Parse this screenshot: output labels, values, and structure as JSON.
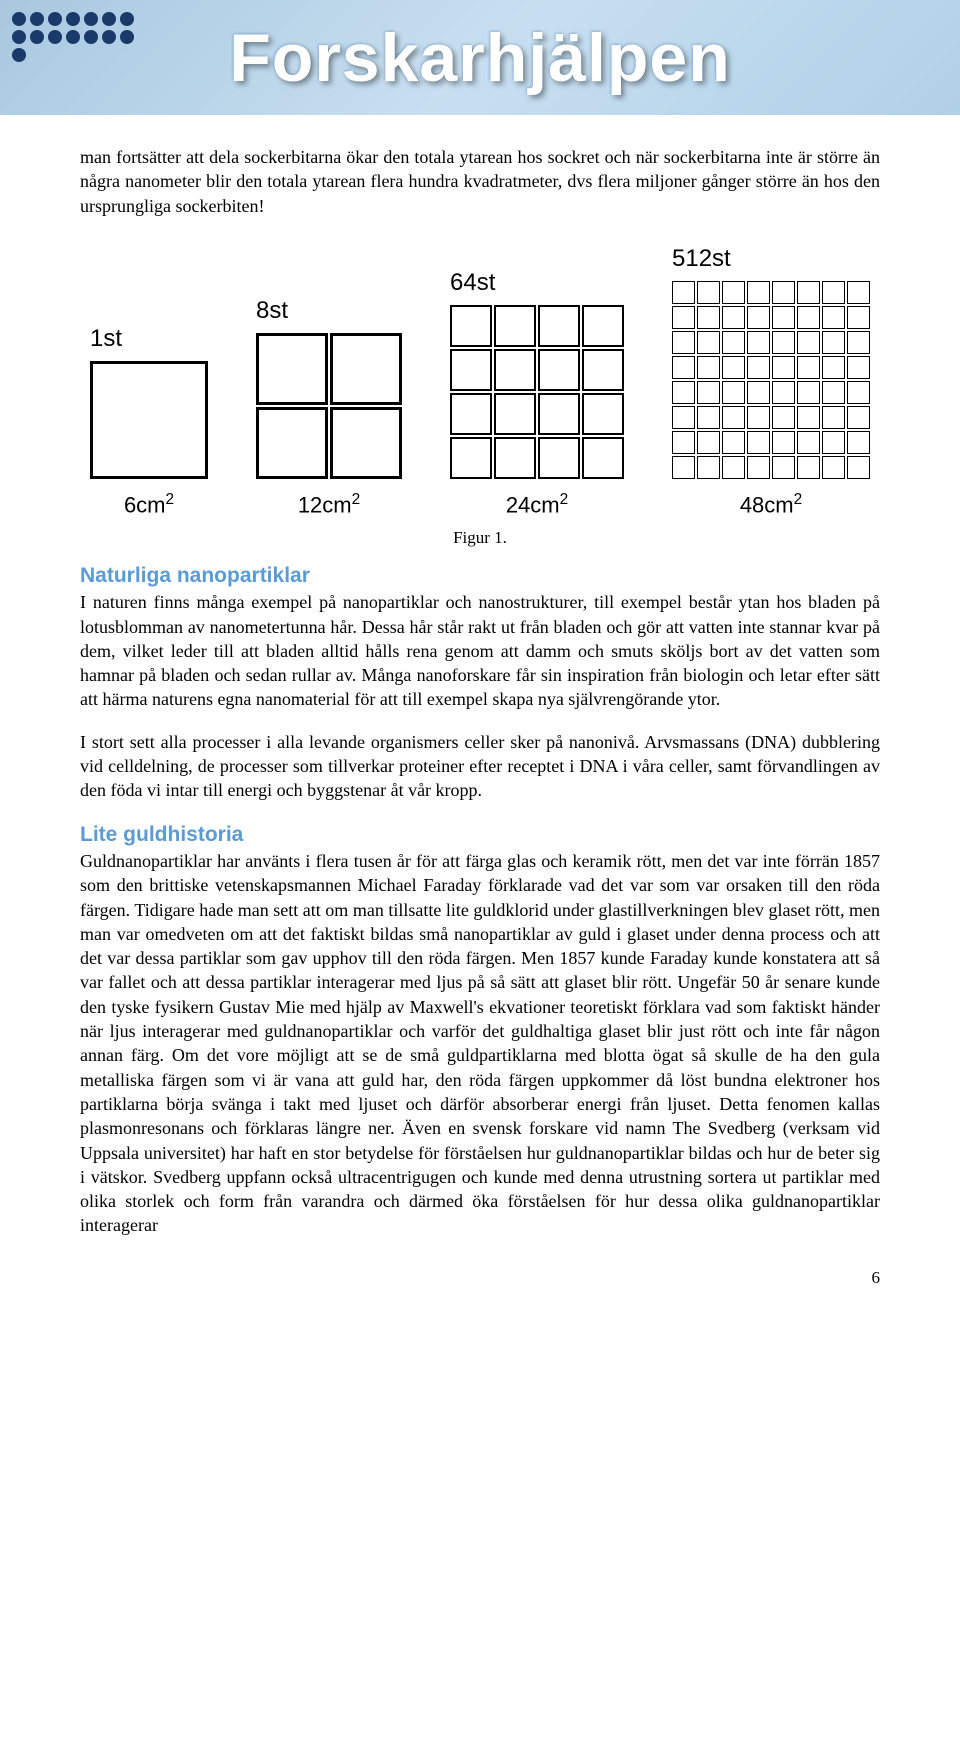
{
  "header": {
    "title": "Forskarhjälpen",
    "banner_bg_colors": [
      "#a8c8e0",
      "#c8dff0",
      "#b0d0e8"
    ],
    "title_color": "#ffffff",
    "dot_color": "#1a3a6a"
  },
  "intro_paragraph": "man fortsätter att dela sockerbitarna ökar den totala ytarean hos sockret och när sockerbitarna inte är större än några nanometer blir den totala ytarean flera hundra kvadratmeter, dvs flera miljoner gånger större än hos den ursprungliga sockerbiten!",
  "figure": {
    "caption": "Figur 1.",
    "groups": [
      {
        "count_label": "1st",
        "area_label": "6cm²",
        "grid_cols": 1,
        "grid_rows": 1,
        "cell_size": 118
      },
      {
        "count_label": "8st",
        "area_label": "12cm²",
        "grid_cols": 2,
        "grid_rows": 2,
        "cell_size": 72
      },
      {
        "count_label": "64st",
        "area_label": "24cm²",
        "grid_cols": 4,
        "grid_rows": 4,
        "cell_size": 42
      },
      {
        "count_label": "512st",
        "area_label": "48cm²",
        "grid_cols": 8,
        "grid_rows": 8,
        "cell_size": 23
      }
    ],
    "border_color": "#000000",
    "label_fontsize": 24
  },
  "section1": {
    "heading": "Naturliga nanopartiklar",
    "p1": "I naturen finns många exempel på nanopartiklar och nanostrukturer, till exempel består ytan hos bladen på lotusblomman av nanometertunna hår. Dessa hår står rakt ut från bladen och gör att vatten inte stannar kvar på dem, vilket leder till att bladen alltid hålls rena genom att damm och smuts sköljs bort av det vatten som hamnar på bladen och sedan rullar av. Många nanoforskare får sin inspiration från biologin och letar efter sätt att härma naturens egna nanomaterial för att till exempel skapa nya självrengörande ytor.",
    "p2": "I stort sett alla processer i alla levande organismers celler sker på nanonivå. Arvsmassans (DNA) dubblering vid celldelning, de processer som tillverkar proteiner efter receptet i DNA i våra celler, samt förvandlingen av den föda vi intar till energi och byggstenar åt vår kropp."
  },
  "section2": {
    "heading": "Lite guldhistoria",
    "p1": "Guldnanopartiklar har använts i flera tusen år för att färga glas och keramik rött, men det var inte förrän 1857 som den brittiske vetenskapsmannen Michael Faraday förklarade vad det var som var orsaken till den röda färgen. Tidigare hade man sett att om man tillsatte lite guldklorid under glastillverkningen blev glaset rött, men man var omedveten om att det faktiskt bildas små nanopartiklar av guld i glaset under denna process och att det var dessa partiklar som gav upphov till den röda färgen. Men 1857 kunde Faraday kunde konstatera att så var fallet och att dessa partiklar interagerar med ljus på så sätt att glaset blir rött. Ungefär 50 år senare kunde den tyske fysikern Gustav Mie med hjälp av Maxwell's ekvationer teoretiskt förklara vad som faktiskt händer när ljus interagerar med guldnanopartiklar och varför det guldhaltiga glaset blir just rött och inte får någon annan färg. Om det vore möjligt att se de små guldpartiklarna med blotta ögat så skulle de ha den gula metalliska färgen som vi är vana att guld har, den röda färgen uppkommer då löst bundna elektroner hos partiklarna börja svänga i takt med ljuset och därför absorberar energi från ljuset. Detta fenomen kallas plasmonresonans och förklaras längre ner. Även en svensk forskare vid namn The Svedberg (verksam vid Uppsala universitet) har haft en stor betydelse för förståelsen hur guldnanopartiklar bildas och hur de beter sig i vätskor. Svedberg uppfann också ultracentrigugen och kunde med denna utrustning sortera ut partiklar med olika storlek och form från varandra och därmed öka förståelsen för hur dessa olika guldnanopartiklar interagerar"
  },
  "page_number": "6",
  "colors": {
    "heading_color": "#5b9bd5",
    "text_color": "#000000",
    "background": "#ffffff"
  },
  "typography": {
    "body_font": "Georgia, serif",
    "heading_font": "Arial, sans-serif",
    "body_fontsize": 18,
    "heading_fontsize": 21
  }
}
